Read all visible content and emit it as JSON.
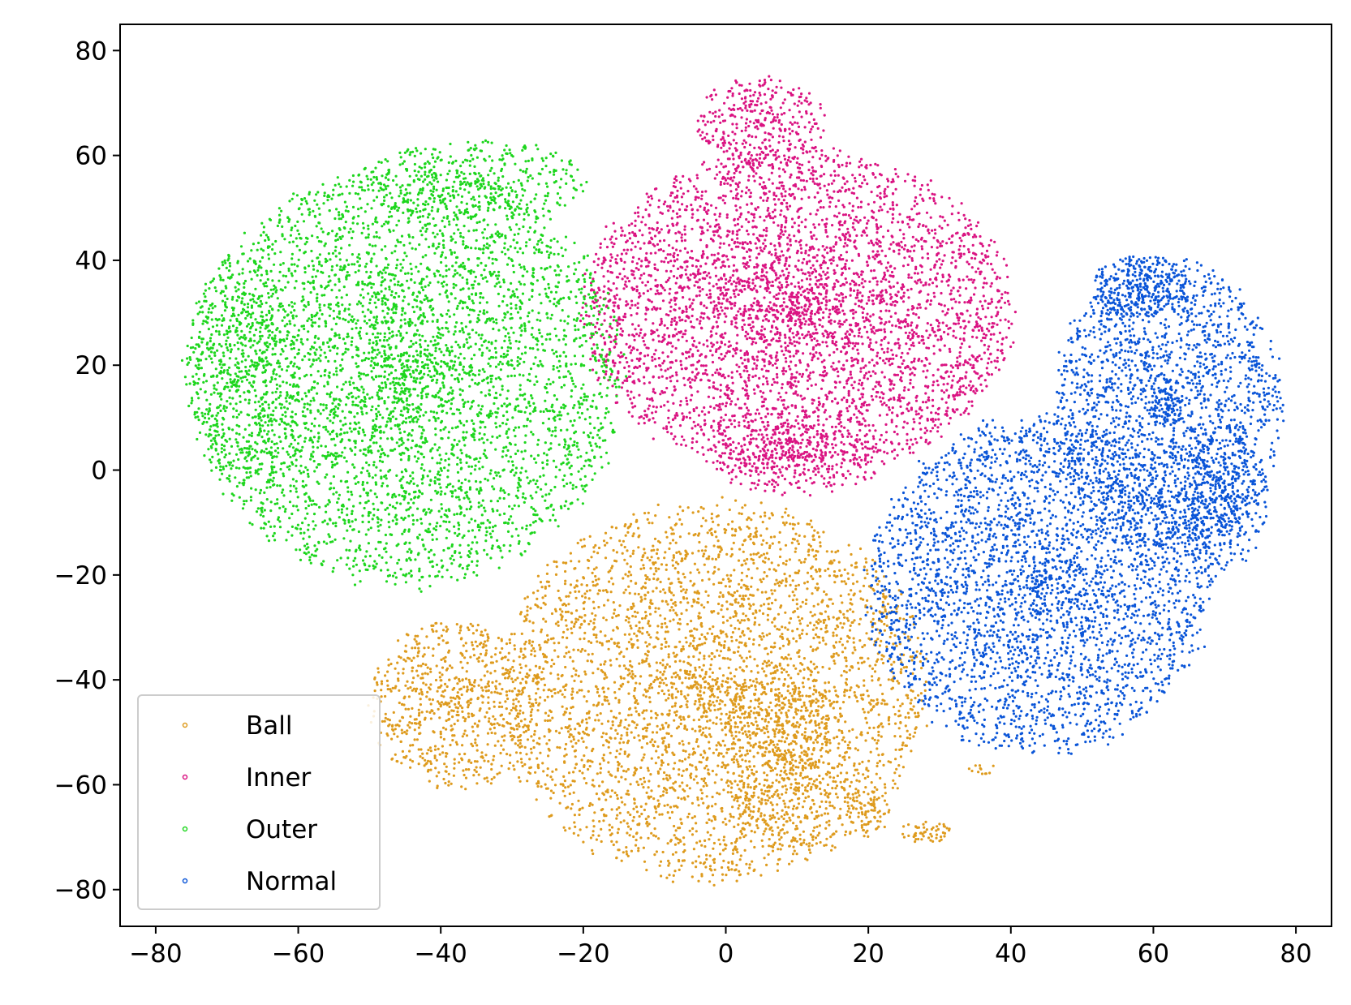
{
  "chart_data": {
    "type": "scatter",
    "title": "",
    "xlabel": "",
    "ylabel": "",
    "xlim": [
      -85,
      85
    ],
    "ylim": [
      -87,
      85
    ],
    "xticks": [
      -80,
      -60,
      -40,
      -20,
      0,
      20,
      40,
      60,
      80
    ],
    "yticks": [
      80,
      60,
      40,
      20,
      0,
      -20,
      -40,
      -60,
      -80
    ],
    "xtick_labels": [
      "−80",
      "−60",
      "−40",
      "−20",
      "0",
      "20",
      "40",
      "60",
      "80"
    ],
    "ytick_labels": [
      "80",
      "60",
      "40",
      "20",
      "0",
      "−20",
      "−40",
      "−60",
      "−80"
    ],
    "grid": false,
    "legend_position": "lower-left",
    "series": [
      {
        "name": "Ball",
        "color": "#DE9B1E",
        "regions": [
          {
            "cx": -2,
            "cy": -42,
            "rx": 30,
            "ry": 36,
            "n": 4200
          },
          {
            "cx": -38,
            "cy": -45,
            "rx": 12,
            "ry": 16,
            "n": 800
          },
          {
            "cx": 8,
            "cy": -55,
            "rx": 9,
            "ry": 18,
            "n": 600
          },
          {
            "cx": 20,
            "cy": -65,
            "rx": 3,
            "ry": 5,
            "n": 80
          },
          {
            "cx": 28,
            "cy": -69,
            "rx": 4,
            "ry": 2,
            "n": 60
          },
          {
            "cx": 36,
            "cy": -57,
            "rx": 2,
            "ry": 1,
            "n": 15
          }
        ]
      },
      {
        "name": "Inner",
        "color": "#DA1482",
        "regions": [
          {
            "cx": 10,
            "cy": 30,
            "rx": 30,
            "ry": 31,
            "n": 5000
          },
          {
            "cx": 5,
            "cy": 66,
            "rx": 9,
            "ry": 9,
            "n": 400
          },
          {
            "cx": 10,
            "cy": 2,
            "rx": 12,
            "ry": 7,
            "n": 300
          }
        ]
      },
      {
        "name": "Outer",
        "color": "#1ED61E",
        "regions": [
          {
            "cx": -45,
            "cy": 18,
            "rx": 30,
            "ry": 40,
            "n": 5200
          },
          {
            "cx": -68,
            "cy": 20,
            "rx": 8,
            "ry": 22,
            "n": 500
          },
          {
            "cx": -35,
            "cy": 55,
            "rx": 16,
            "ry": 8,
            "n": 400
          }
        ]
      },
      {
        "name": "Normal",
        "color": "#0A55D8",
        "regions": [
          {
            "cx": 44,
            "cy": -22,
            "rx": 24,
            "ry": 32,
            "n": 3600
          },
          {
            "cx": 62,
            "cy": 12,
            "rx": 16,
            "ry": 28,
            "n": 2200
          },
          {
            "cx": 58,
            "cy": 35,
            "rx": 7,
            "ry": 6,
            "n": 300
          },
          {
            "cx": 70,
            "cy": -5,
            "rx": 6,
            "ry": 14,
            "n": 400
          }
        ]
      }
    ]
  }
}
